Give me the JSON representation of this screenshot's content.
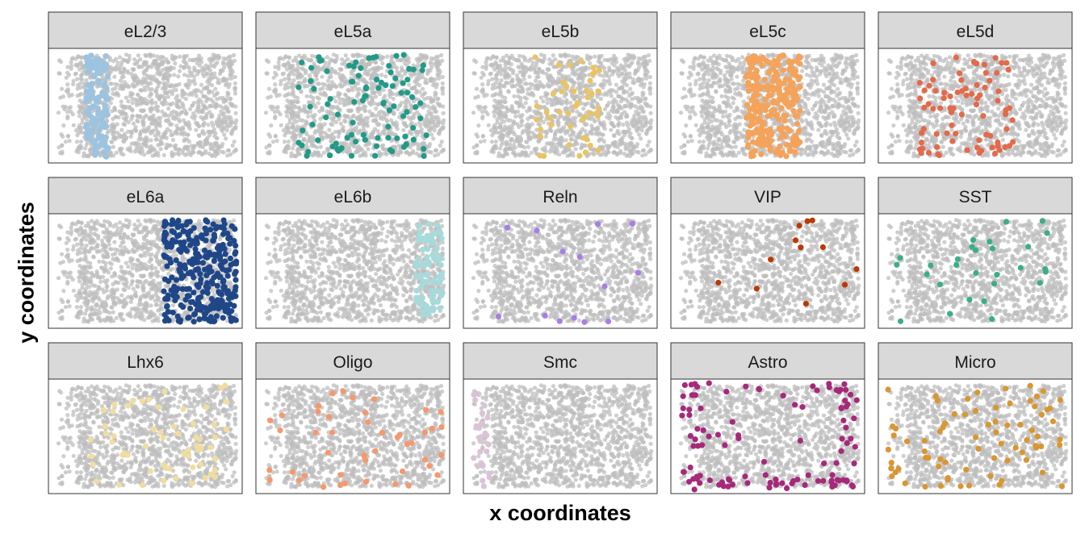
{
  "chart_data": {
    "type": "scatter",
    "layout": "faceted small multiples, 3 rows x 5 columns",
    "xlabel": "x coordinates",
    "ylabel": "y coordinates",
    "x_axis_ticks_shown": false,
    "y_axis_ticks_shown": false,
    "grid": false,
    "background_points_color": "#bebebe",
    "strip_background_color": "#d9d9d9",
    "panel_border_color": "#333333",
    "panels": [
      {
        "label": "eL2/3",
        "color": "#9cc3df",
        "highlight": {
          "mode": "band",
          "x_range": [
            0.18,
            0.3
          ],
          "count": 130
        }
      },
      {
        "label": "eL5a",
        "color": "#229a88",
        "highlight": {
          "mode": "band",
          "x_range": [
            0.2,
            0.9
          ],
          "count": 95
        }
      },
      {
        "label": "eL5b",
        "color": "#e9c463",
        "highlight": {
          "mode": "band",
          "x_range": [
            0.35,
            0.72
          ],
          "count": 45
        }
      },
      {
        "label": "eL5c",
        "color": "#f5a35b",
        "highlight": {
          "mode": "band",
          "x_range": [
            0.38,
            0.68
          ],
          "count": 260
        }
      },
      {
        "label": "eL5d",
        "color": "#e36a4b",
        "highlight": {
          "mode": "band",
          "x_range": [
            0.2,
            0.72
          ],
          "count": 80
        }
      },
      {
        "label": "eL6a",
        "color": "#1f4788",
        "highlight": {
          "mode": "band",
          "x_range": [
            0.6,
            0.99
          ],
          "count": 320
        }
      },
      {
        "label": "eL6b",
        "color": "#a6dadb",
        "highlight": {
          "mode": "band",
          "x_range": [
            0.84,
            0.98
          ],
          "count": 85
        }
      },
      {
        "label": "Reln",
        "color": "#a87ee6",
        "highlight": {
          "mode": "band",
          "x_range": [
            0.15,
            0.98
          ],
          "count": 14
        }
      },
      {
        "label": "VIP",
        "color": "#b83a05",
        "highlight": {
          "mode": "band",
          "x_range": [
            0.15,
            0.98
          ],
          "count": 12
        }
      },
      {
        "label": "SST",
        "color": "#3cae87",
        "highlight": {
          "mode": "band",
          "x_range": [
            0.05,
            0.98
          ],
          "count": 28
        }
      },
      {
        "label": "Lhx6",
        "color": "#f0dda0",
        "highlight": {
          "mode": "band",
          "x_range": [
            0.2,
            0.95
          ],
          "count": 60
        }
      },
      {
        "label": "Oligo",
        "color": "#f6986c",
        "highlight": {
          "mode": "band",
          "x_range": [
            0.05,
            0.98
          ],
          "count": 45
        }
      },
      {
        "label": "Smc",
        "color": "#dcc2d8",
        "highlight": {
          "mode": "band",
          "x_range": [
            0.03,
            0.12
          ],
          "count": 25
        }
      },
      {
        "label": "Astro",
        "color": "#a6297a",
        "highlight": {
          "mode": "perimeter",
          "x_range": [
            0.03,
            0.98
          ],
          "count": 110
        }
      },
      {
        "label": "Micro",
        "color": "#d99631",
        "highlight": {
          "mode": "band",
          "x_range": [
            0.03,
            0.97
          ],
          "count": 75
        }
      }
    ]
  }
}
